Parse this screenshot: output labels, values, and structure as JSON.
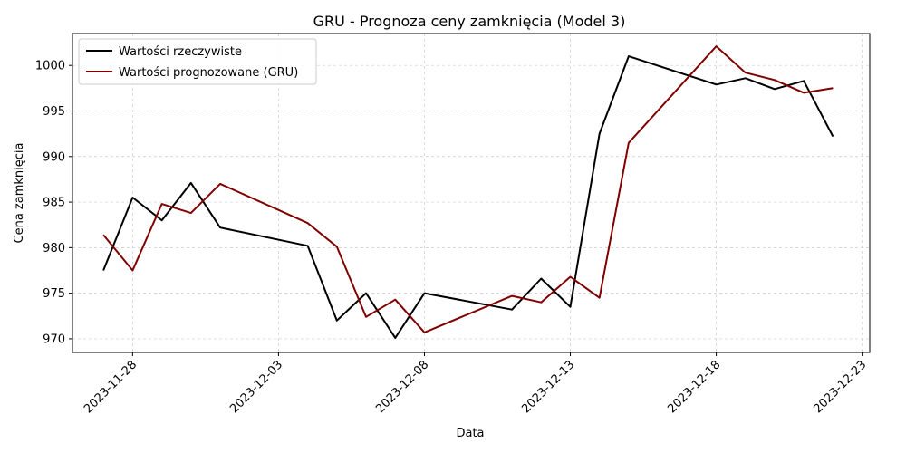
{
  "chart_data": {
    "type": "line",
    "title": "GRU - Prognoza ceny zamknięcia (Model 3)",
    "xlabel": "Data",
    "ylabel": "Cena zamknięcia",
    "ylim": [
      968.5,
      1003.5
    ],
    "xlim": [
      "2023-11-25",
      "2023-12-23"
    ],
    "y_ticks": [
      970,
      975,
      980,
      985,
      990,
      995,
      1000
    ],
    "x_ticks": [
      "2023-11-28",
      "2023-12-03",
      "2023-12-08",
      "2023-12-13",
      "2023-12-18",
      "2023-12-23"
    ],
    "grid": true,
    "legend_position": "top-left",
    "series": [
      {
        "name": "Wartości rzeczywiste",
        "color": "#000000",
        "x": [
          "2023-11-27",
          "2023-11-28",
          "2023-11-29",
          "2023-11-30",
          "2023-12-01",
          "2023-12-04",
          "2023-12-05",
          "2023-12-06",
          "2023-12-07",
          "2023-12-08",
          "2023-12-11",
          "2023-12-12",
          "2023-12-13",
          "2023-12-14",
          "2023-12-15",
          "2023-12-18",
          "2023-12-19",
          "2023-12-20",
          "2023-12-21",
          "2023-12-22"
        ],
        "y": [
          977.5,
          985.5,
          983.0,
          987.1,
          982.2,
          980.2,
          972.0,
          975.0,
          970.1,
          975.0,
          973.2,
          976.6,
          973.5,
          992.5,
          1001.0,
          997.9,
          998.6,
          997.4,
          998.3,
          992.2
        ]
      },
      {
        "name": "Wartości prognozowane (GRU)",
        "color": "#800000",
        "x": [
          "2023-11-27",
          "2023-11-28",
          "2023-11-29",
          "2023-11-30",
          "2023-12-01",
          "2023-12-04",
          "2023-12-05",
          "2023-12-06",
          "2023-12-07",
          "2023-12-08",
          "2023-12-11",
          "2023-12-12",
          "2023-12-13",
          "2023-12-14",
          "2023-12-15",
          "2023-12-18",
          "2023-12-19",
          "2023-12-20",
          "2023-12-21",
          "2023-12-22"
        ],
        "y": [
          981.4,
          977.5,
          984.8,
          983.8,
          987.0,
          982.7,
          980.1,
          972.4,
          974.3,
          970.7,
          974.7,
          974.0,
          976.8,
          974.5,
          991.5,
          1002.1,
          999.2,
          998.4,
          997.0,
          997.5
        ]
      }
    ]
  }
}
